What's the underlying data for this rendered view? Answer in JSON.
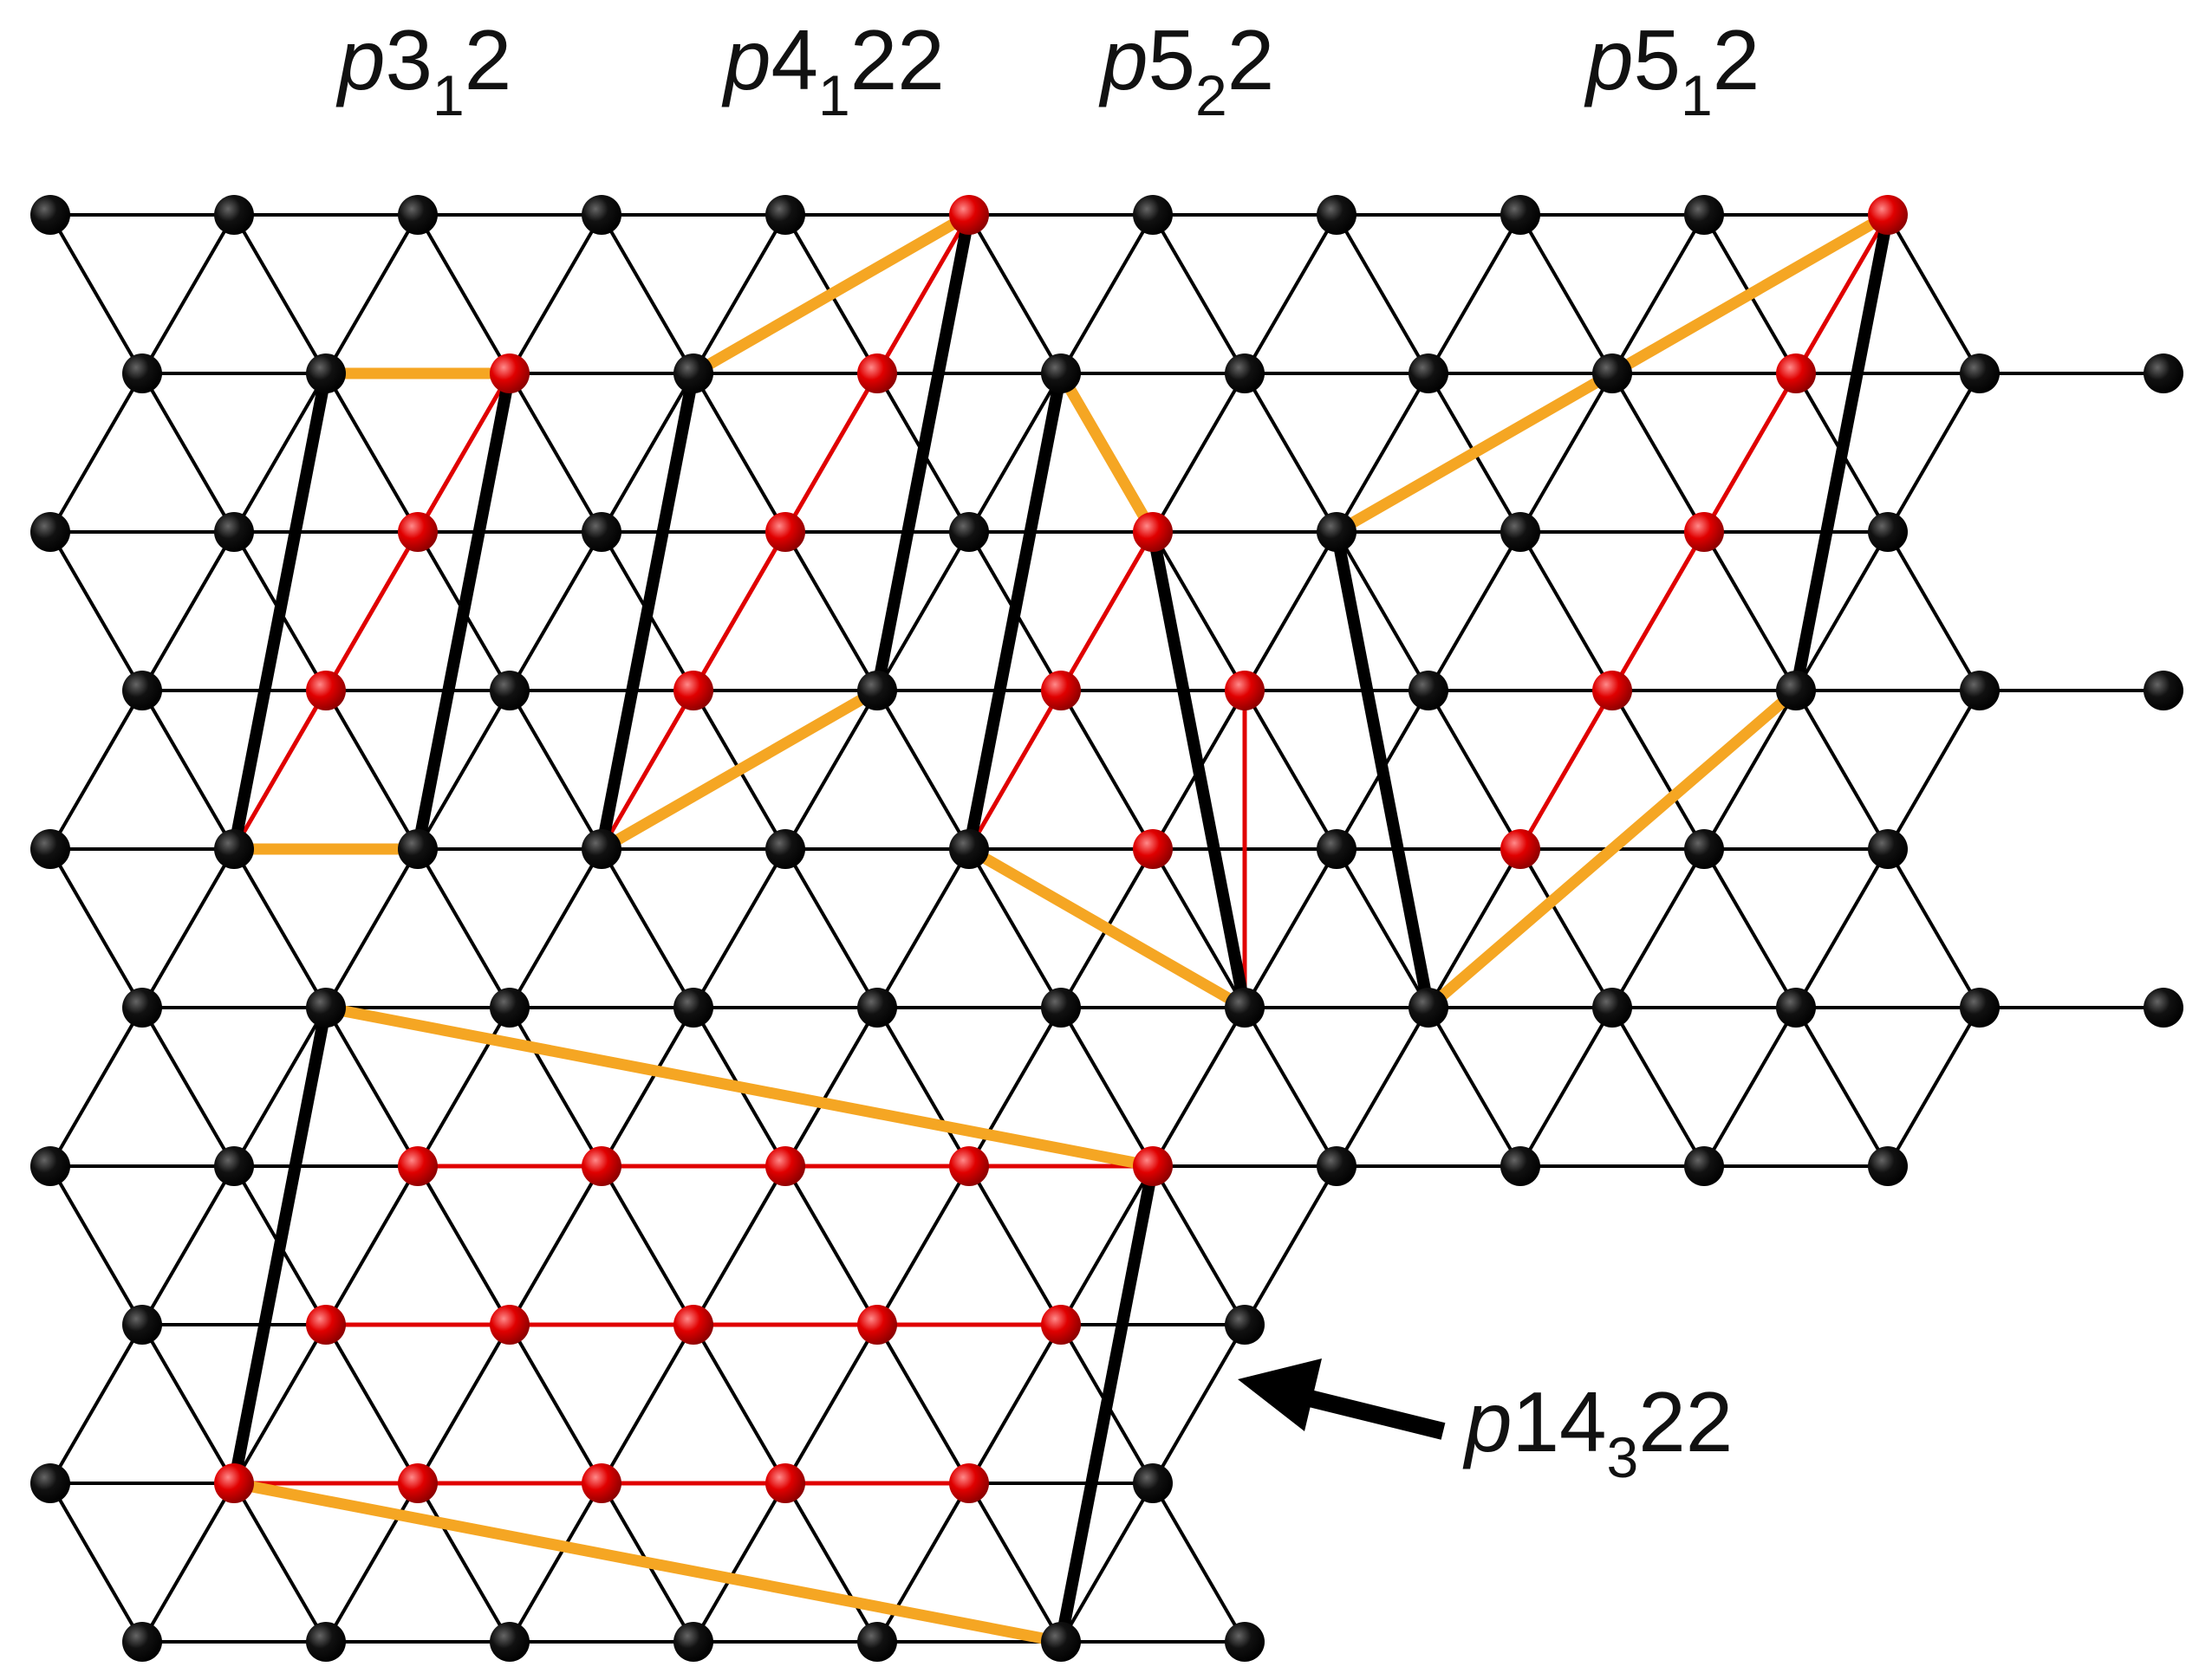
{
  "labels": [
    {
      "id": "p3-1-2",
      "prefix": "p",
      "main": "3",
      "sub": "1",
      "suffix": "2"
    },
    {
      "id": "p4-1-22",
      "prefix": "p",
      "main": "4",
      "sub": "1",
      "suffix": "22"
    },
    {
      "id": "p5-2-2",
      "prefix": "p",
      "main": "5",
      "sub": "2",
      "suffix": "2"
    },
    {
      "id": "p5-1-2",
      "prefix": "p",
      "main": "5",
      "sub": "1",
      "suffix": "2"
    },
    {
      "id": "p14-3-22",
      "prefix": "p",
      "main": "14",
      "sub": "3",
      "suffix": "22"
    }
  ],
  "colors": {
    "lattice": "#000000",
    "node": "#0a0a0a",
    "highlight_node": "#e00000",
    "red_line": "#e00000",
    "orange_line": "#f5a623",
    "black_line": "#000000",
    "arrow": "#000000"
  },
  "icons": {
    "arrow": "left-arrow-icon"
  }
}
